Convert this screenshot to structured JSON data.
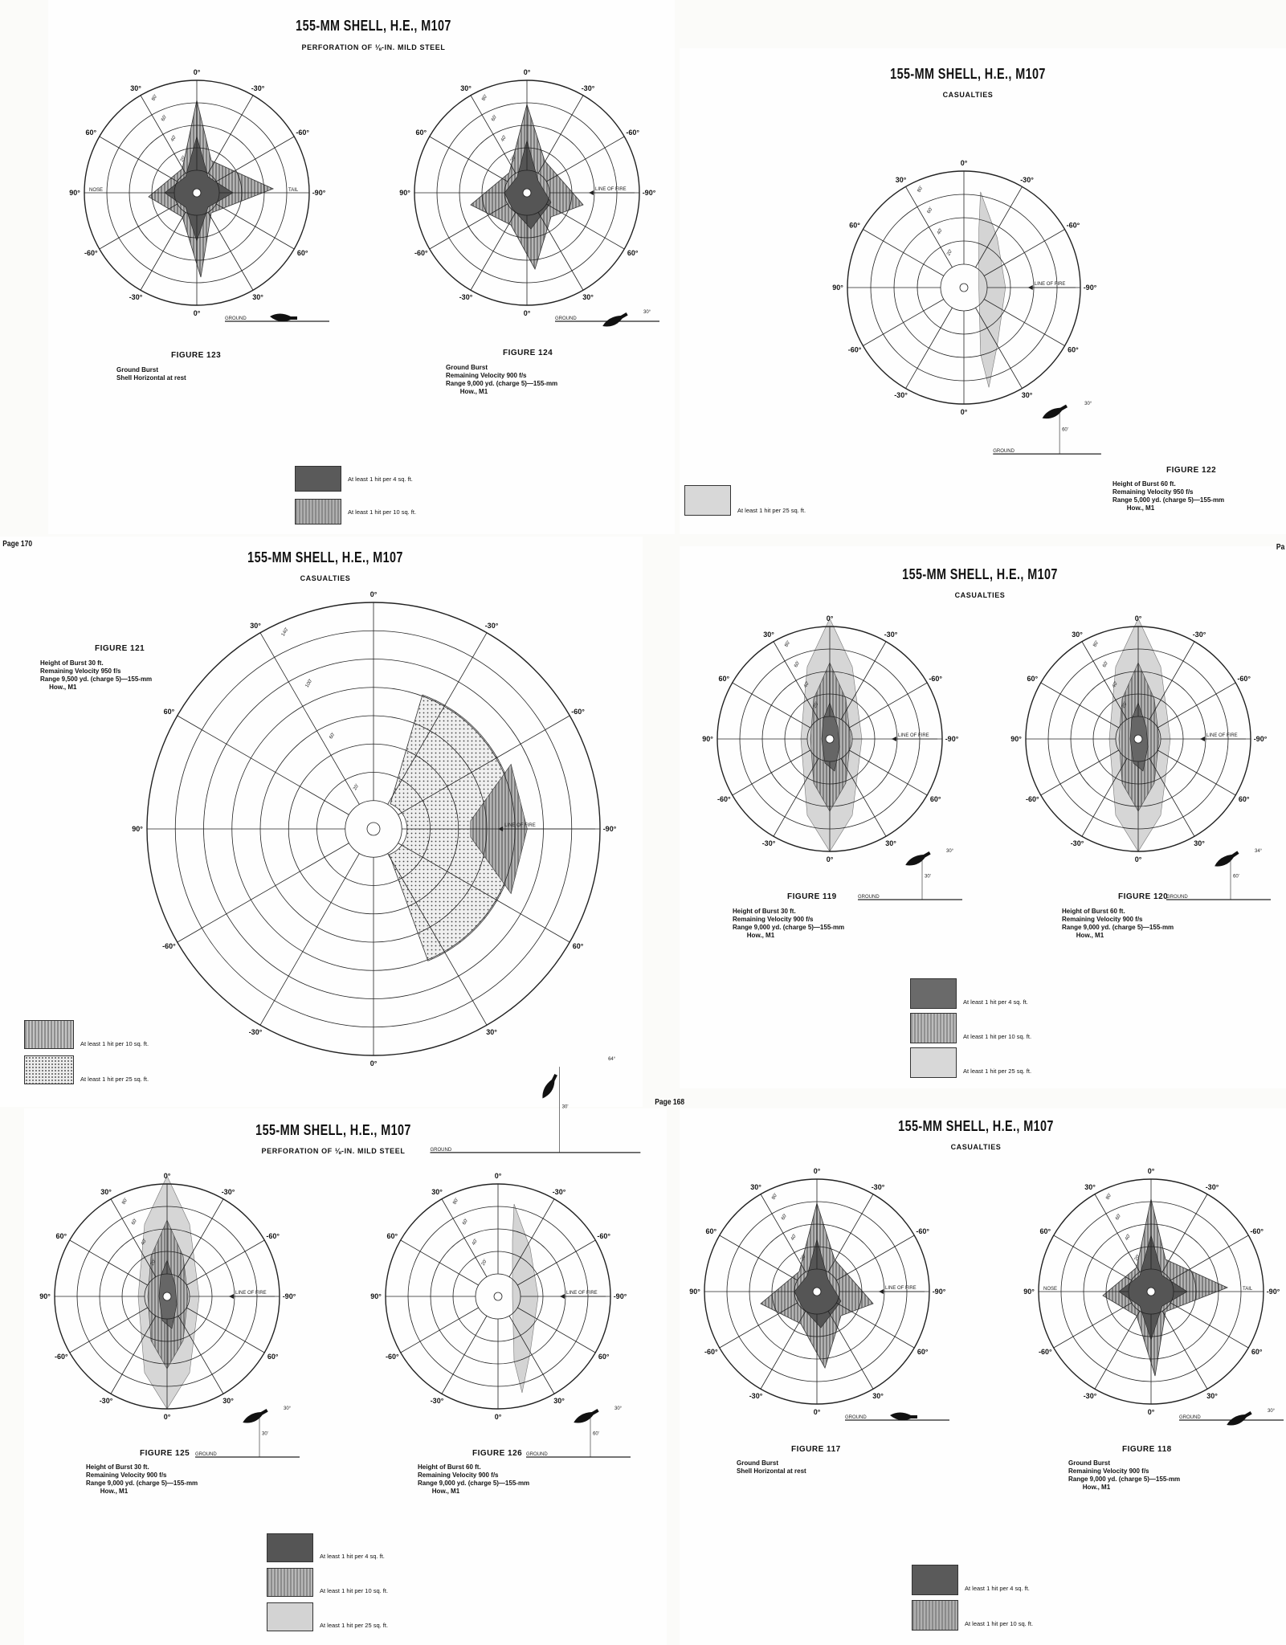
{
  "page_labels": {
    "p170": "Page 170",
    "p168": "Page 168",
    "pag": "Pa"
  },
  "panels": [
    {
      "title": "155-MM SHELL, H.E., M107",
      "subtitle": "PERFORATION OF ⅛-IN. MILD STEEL",
      "figures": [
        {
          "label": "FIGURE 123",
          "caption": "Ground Burst\nShell Horizontal at rest",
          "angles": [
            "0°",
            "30°",
            "-30°",
            "60°",
            "-60°",
            "90°",
            "-90°"
          ],
          "rings": [
            "80'",
            "60'",
            "40'",
            "20'"
          ],
          "side_labels": [
            "NOSE",
            "TAIL"
          ],
          "ground_label": "GROUND"
        },
        {
          "label": "FIGURE 124",
          "caption": "Ground Burst\nRemaining Velocity 900 f/s\nRange 9,000 yd. (charge 5)—155-mm\n        How., M1",
          "angles": [
            "0°",
            "30°",
            "-30°",
            "60°",
            "-60°",
            "90°",
            "-90°"
          ],
          "rings": [
            "80'",
            "60'",
            "40'",
            "20'"
          ],
          "side_labels": [
            "LINE OF FIRE"
          ],
          "ground_label": "GROUND",
          "impact_angle": "30°"
        }
      ],
      "legend": [
        {
          "text": "At least 1 hit per 4 sq. ft.",
          "color": "#5a5a5a"
        },
        {
          "text": "At least 1 hit per 10 sq. ft.",
          "color": "#9a9a9a"
        }
      ]
    },
    {
      "title": "155-MM SHELL, H.E., M107",
      "subtitle": "CASUALTIES",
      "figures": [
        {
          "label": "FIGURE 122",
          "caption": "Height of Burst 60 ft.\nRemaining Velocity 950 f/s\nRange 5,000 yd. (charge 5)—155-mm\n        How., M1",
          "angles": [
            "0°",
            "30°",
            "-30°",
            "60°",
            "-60°",
            "90°",
            "-90°"
          ],
          "rings": [
            "80'",
            "60'",
            "40'",
            "20'"
          ],
          "side_labels": [
            "LINE OF FIRE"
          ],
          "ground_label": "GROUND",
          "impact_angle": "30°",
          "height": "60'"
        }
      ],
      "legend": [
        {
          "text": "At least 1 hit per 25 sq. ft.",
          "color": "#d4d4d4"
        }
      ]
    },
    {
      "title": "155-MM SHELL, H.E., M107",
      "subtitle": "CASUALTIES",
      "figures": [
        {
          "label": "FIGURE 121",
          "caption": "Height of Burst 30 ft.\nRemaining Velocity 950 f/s\nRange 9,500 yd. (charge 5)—155-mm\n     How., M1",
          "angles": [
            "0°",
            "30°",
            "-30°",
            "60°",
            "-60°",
            "90°",
            "-90°",
            "0°",
            "30°",
            "-30°",
            "60°",
            "-60°"
          ],
          "rings": [
            "140'",
            "100'",
            "60'",
            "20'"
          ],
          "side_labels": [
            "LINE OF FIRE"
          ],
          "ground_label": "GROUND",
          "impact_angle": "64°",
          "height": "30'"
        }
      ],
      "legend": [
        {
          "text": "At least 1 hit per 10 sq. ft.",
          "color": "#a8a8a8"
        },
        {
          "text": "At least 1 hit per 25 sq. ft.",
          "color": "#e8e8e8"
        }
      ]
    },
    {
      "title": "155-MM SHELL, H.E., M107",
      "subtitle": "CASUALTIES",
      "figures": [
        {
          "label": "FIGURE 119",
          "caption": "Height of Burst 30 ft.\nRemaining Velocity 900 f/s\nRange 9,000 yd. (charge 5)—155-mm\n        How., M1",
          "angles": [
            "0°",
            "30°",
            "-30°",
            "60°",
            "-60°",
            "90°",
            "-90°"
          ],
          "rings": [
            "80'",
            "60'",
            "40'",
            "20'"
          ],
          "side_labels": [
            "LINE OF FIRE"
          ],
          "ground_label": "GROUND",
          "impact_angle": "30°",
          "height": "30'"
        },
        {
          "label": "FIGURE 120",
          "caption": "Height of Burst 60 ft.\nRemaining Velocity 900 f/s\nRange 9,000 yd. (charge 5)—155-mm\n        How., M1",
          "angles": [
            "0°",
            "30°",
            "-30°",
            "60°",
            "-60°",
            "90°",
            "-90°"
          ],
          "rings": [
            "80'",
            "60'",
            "40'",
            "20'"
          ],
          "side_labels": [
            "LINE OF FIRE"
          ],
          "ground_label": "GROUND",
          "impact_angle": "34°",
          "height": "60'"
        }
      ],
      "legend": [
        {
          "text": "At least 1 hit per 4 sq. ft.",
          "color": "#6a6a6a"
        },
        {
          "text": "At least 1 hit per 10 sq. ft.",
          "color": "#a0a0a0"
        },
        {
          "text": "At least 1 hit per 25 sq. ft.",
          "color": "#d6d6d6"
        }
      ]
    },
    {
      "title": "155-MM SHELL, H.E., M107",
      "subtitle": "PERFORATION OF ⅛-IN. MILD STEEL",
      "figures": [
        {
          "label": "FIGURE 125",
          "caption": "Height of Burst 30 ft.\nRemaining Velocity 900 f/s\nRange 9,000 yd. (charge 5)—155-mm\n        How., M1",
          "angles": [
            "0°",
            "30°",
            "-30°",
            "60°",
            "-60°",
            "90°",
            "-90°"
          ],
          "rings": [
            "80'",
            "60'",
            "40'",
            "20'"
          ],
          "side_labels": [
            "LINE OF FIRE"
          ],
          "ground_label": "GROUND",
          "impact_angle": "30°",
          "height": "30'"
        },
        {
          "label": "FIGURE 126",
          "caption": "Height of Burst 60 ft.\nRemaining Velocity 900 f/s\nRange 9,000 yd. (charge 5)—155-mm\n        How., M1",
          "angles": [
            "0°",
            "30°",
            "-30°",
            "60°",
            "-60°",
            "90°",
            "-90°"
          ],
          "rings": [
            "80'",
            "60'",
            "40'",
            "20'"
          ],
          "side_labels": [
            "LINE OF FIRE"
          ],
          "ground_label": "GROUND",
          "impact_angle": "30°",
          "height": "60'"
        }
      ],
      "legend": [
        {
          "text": "At least 1 hit per 4 sq. ft.",
          "color": "#555555"
        },
        {
          "text": "At least 1 hit per 10 sq. ft.",
          "color": "#9c9c9c"
        },
        {
          "text": "At least 1 hit per 25 sq. ft.",
          "color": "#d3d3d3"
        }
      ]
    },
    {
      "title": "155-MM SHELL, H.E., M107",
      "subtitle": "CASUALTIES",
      "figures": [
        {
          "label": "FIGURE 117",
          "caption": "Ground Burst\nShell Horizontal at rest",
          "angles": [
            "0°",
            "30°",
            "-30°",
            "60°",
            "-60°",
            "90°",
            "-90°"
          ],
          "rings": [
            "80'",
            "60'",
            "40'",
            "20'"
          ],
          "side_labels": [
            "LINE OF FIRE"
          ],
          "ground_label": "GROUND"
        },
        {
          "label": "FIGURE 118",
          "caption": "Ground Burst\nRemaining Velocity 900 f/s\nRange 9,000 yd. (charge 5)—155-mm\n        How., M1",
          "angles": [
            "0°",
            "30°",
            "-30°",
            "60°",
            "-60°",
            "90°",
            "-90°"
          ],
          "rings": [
            "80'",
            "60'",
            "40'",
            "20'"
          ],
          "side_labels": [
            "NOSE",
            "TAIL"
          ],
          "ground_label": "GROUND",
          "impact_angle": "30°"
        }
      ],
      "legend": [
        {
          "text": "At least 1 hit per 4 sq. ft.",
          "color": "#5a5a5a"
        },
        {
          "text": "At least 1 hit per 10 sq. ft.",
          "color": "#9a9a9a"
        }
      ]
    }
  ]
}
